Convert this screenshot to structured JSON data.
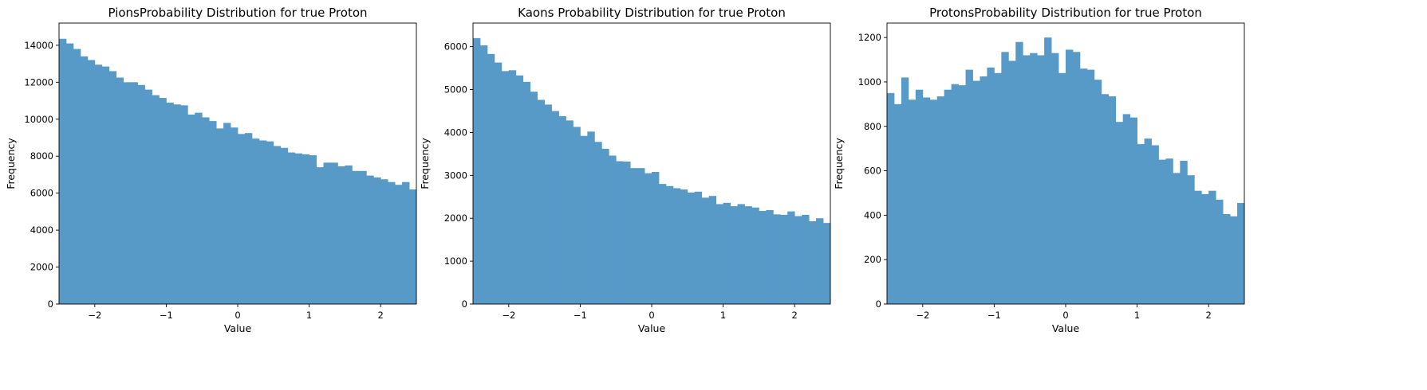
{
  "chart_data": [
    {
      "type": "histogram",
      "title": "PionsProbability Distribution for true  Proton",
      "xlabel": "Value",
      "ylabel": "Frequency",
      "xlim": [
        -2.5,
        2.5
      ],
      "ylim": [
        0,
        15200
      ],
      "xticks": [
        -2,
        -1,
        0,
        1,
        2
      ],
      "xtick_labels": [
        "−2",
        "−1",
        "0",
        "1",
        "2"
      ],
      "yticks": [
        0,
        2000,
        4000,
        6000,
        8000,
        10000,
        12000,
        14000
      ],
      "ytick_labels": [
        "0",
        "2000",
        "4000",
        "6000",
        "8000",
        "10000",
        "12000",
        "14000"
      ],
      "bin_start": -2.5,
      "bin_width": 0.1,
      "values": [
        14350,
        14100,
        13800,
        13400,
        13200,
        12950,
        12850,
        12600,
        12250,
        12000,
        12000,
        11850,
        11600,
        11300,
        11150,
        10900,
        10800,
        10750,
        10250,
        10350,
        10100,
        9900,
        9500,
        9800,
        9550,
        9200,
        9250,
        8950,
        8850,
        8800,
        8550,
        8450,
        8200,
        8150,
        8100,
        8050,
        7400,
        7650,
        7650,
        7450,
        7500,
        7200,
        7200,
        6950,
        6850,
        6750,
        6600,
        6450,
        6600,
        6200
      ],
      "color": "#5799c7"
    },
    {
      "type": "histogram",
      "title": "Kaons Probability Distribution for  true Proton",
      "xlabel": "Value",
      "ylabel": "Frequency",
      "xlim": [
        -2.5,
        2.5
      ],
      "ylim": [
        0,
        6550
      ],
      "xticks": [
        -2,
        -1,
        0,
        1,
        2
      ],
      "xtick_labels": [
        "−2",
        "−1",
        "0",
        "1",
        "2"
      ],
      "yticks": [
        0,
        1000,
        2000,
        3000,
        4000,
        5000,
        6000
      ],
      "ytick_labels": [
        "0",
        "1000",
        "2000",
        "3000",
        "4000",
        "5000",
        "6000"
      ],
      "bin_start": -2.5,
      "bin_width": 0.1,
      "values": [
        6200,
        6030,
        5830,
        5630,
        5430,
        5450,
        5330,
        5180,
        4950,
        4760,
        4650,
        4500,
        4380,
        4280,
        4130,
        3920,
        4020,
        3780,
        3620,
        3460,
        3330,
        3320,
        3170,
        3170,
        3050,
        3080,
        2800,
        2750,
        2700,
        2670,
        2600,
        2620,
        2480,
        2520,
        2330,
        2360,
        2280,
        2330,
        2280,
        2250,
        2170,
        2190,
        2090,
        2080,
        2160,
        2050,
        2080,
        1930,
        2000,
        1890
      ],
      "color": "#5799c7"
    },
    {
      "type": "histogram",
      "title": "ProtonsProbability Distribution for  true Proton",
      "xlabel": "Value",
      "ylabel": "Frequency",
      "xlim": [
        -2.5,
        2.5
      ],
      "ylim": [
        0,
        1265
      ],
      "xticks": [
        -2,
        -1,
        0,
        1,
        2
      ],
      "xtick_labels": [
        "−2",
        "−1",
        "0",
        "1",
        "2"
      ],
      "yticks": [
        0,
        200,
        400,
        600,
        800,
        1000,
        1200
      ],
      "ytick_labels": [
        "0",
        "200",
        "400",
        "600",
        "800",
        "1000",
        "1200"
      ],
      "bin_start": -2.5,
      "bin_width": 0.1,
      "values": [
        950,
        900,
        1020,
        920,
        965,
        930,
        920,
        935,
        965,
        990,
        985,
        1055,
        1005,
        1025,
        1065,
        1040,
        1135,
        1095,
        1180,
        1120,
        1130,
        1120,
        1200,
        1130,
        1040,
        1145,
        1135,
        1060,
        1055,
        1010,
        945,
        935,
        820,
        855,
        840,
        720,
        745,
        715,
        650,
        655,
        590,
        645,
        580,
        510,
        495,
        510,
        470,
        405,
        395,
        455
      ],
      "color": "#5799c7"
    }
  ]
}
